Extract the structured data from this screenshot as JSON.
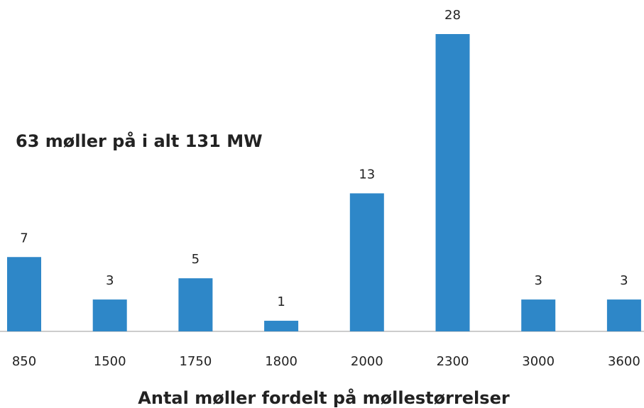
{
  "chart_data": {
    "type": "bar",
    "title": "Antal møller fordelt på møllestørrelser",
    "annotation": "63 møller på i alt 131 MW",
    "categories": [
      "850",
      "1500",
      "1750",
      "1800",
      "2000",
      "2300",
      "3000",
      "3600"
    ],
    "values": [
      7,
      3,
      5,
      1,
      13,
      28,
      3,
      3
    ],
    "color": "#2e87c8"
  }
}
